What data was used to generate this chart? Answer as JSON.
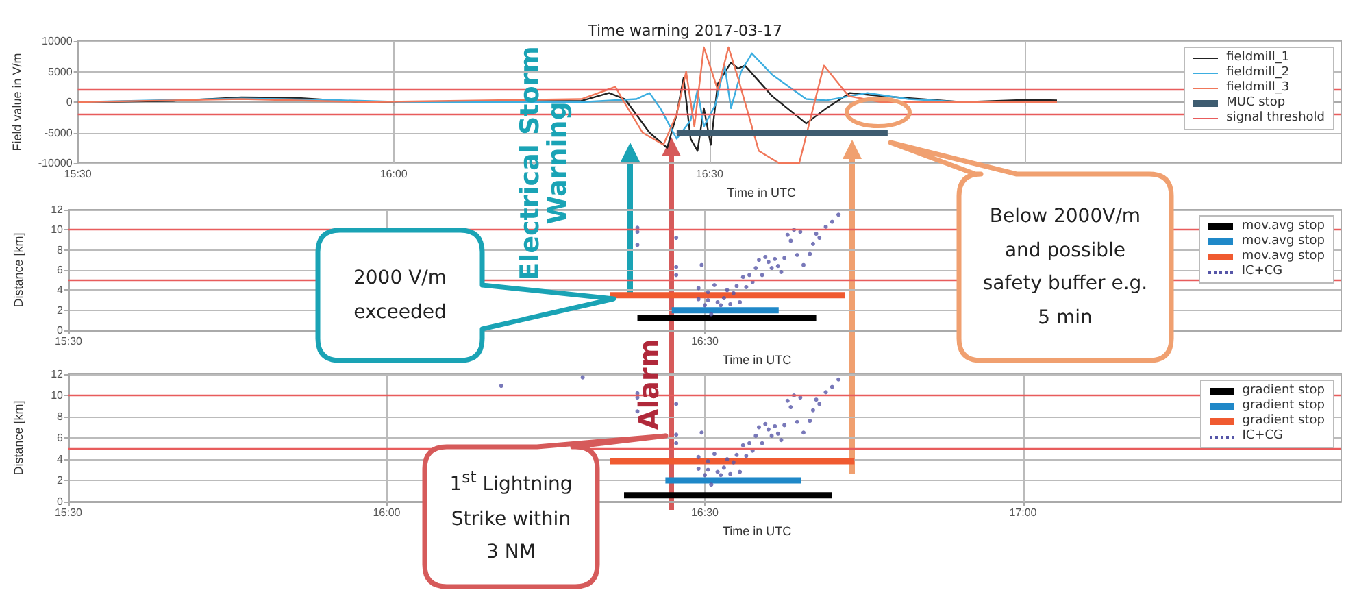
{
  "chart_data": [
    {
      "type": "line",
      "title": "Time warning 2017-03-17",
      "xlabel": "Time in UTC",
      "ylabel": "Field value in V/m",
      "xlim": [
        15.5,
        17.5
      ],
      "xticks": [
        {
          "value": 15.5,
          "label": "15:30"
        },
        {
          "value": 16,
          "label": "16:00"
        },
        {
          "value": 16.5,
          "label": "16:30"
        },
        {
          "value": 17,
          "label": null
        }
      ],
      "ylim": [
        -10000,
        10000
      ],
      "yticks": [
        -10000,
        -5000,
        0,
        5000,
        10000
      ],
      "grid": true,
      "legend": "top right",
      "series": [
        {
          "name": "fieldmill_1",
          "color": "#222222",
          "x": [
            15.5,
            15.651,
            15.759,
            15.845,
            15.953,
            16.297,
            16.341,
            16.366,
            16.405,
            16.433,
            16.448,
            16.459,
            16.47,
            16.481,
            16.491,
            16.502,
            16.513,
            16.534,
            16.545,
            16.556,
            16.599,
            16.653,
            16.685,
            16.722,
            16.772,
            16.901,
            17.009,
            17.05
          ],
          "values": [
            0,
            200,
            800,
            700,
            0,
            200,
            1500,
            500,
            -5000,
            -7500,
            -2000,
            4000,
            -6000,
            -8000,
            -1000,
            -7000,
            3000,
            6500,
            5500,
            6000,
            1000,
            -3500,
            -1000,
            1500,
            1000,
            0,
            400,
            300
          ]
        },
        {
          "name": "fieldmill_2",
          "color": "#3daee0",
          "x": [
            15.5,
            15.759,
            15.888,
            16.017,
            16.297,
            16.384,
            16.405,
            16.422,
            16.448,
            16.47,
            16.481,
            16.491,
            16.509,
            16.524,
            16.534,
            16.55,
            16.567,
            16.599,
            16.653,
            16.685,
            16.75,
            16.815,
            16.901,
            17.05
          ],
          "values": [
            0,
            600,
            400,
            0,
            0,
            500,
            1500,
            -1000,
            -6000,
            -3000,
            2000,
            -4000,
            -500,
            6000,
            -1000,
            5000,
            8000,
            4500,
            500,
            300,
            1500,
            500,
            0,
            0
          ]
        },
        {
          "name": "fieldmill_3",
          "color": "#f0775a",
          "x": [
            15.5,
            15.759,
            15.953,
            16.297,
            16.351,
            16.362,
            16.394,
            16.427,
            16.448,
            16.463,
            16.476,
            16.491,
            16.513,
            16.53,
            16.545,
            16.578,
            16.61,
            16.642,
            16.681,
            16.72,
            16.772,
            17.05
          ],
          "values": [
            0,
            500,
            0,
            500,
            2500,
            500,
            -5000,
            -7000,
            -2000,
            5000,
            -4000,
            9000,
            2000,
            9000,
            4000,
            -8000,
            -10000,
            -10000,
            6000,
            1000,
            0,
            0
          ]
        },
        {
          "name": "MUC stop",
          "color": "#3e5c70",
          "x": [
            16.448,
            16.782
          ],
          "values": [
            -5000,
            -5000
          ]
        }
      ],
      "ref_lines": [
        {
          "axis": "y",
          "value": 2000,
          "label": "signal threshold",
          "color": "#e85c5c"
        },
        {
          "axis": "y",
          "value": -2000,
          "color": "#e85c5c"
        }
      ]
    },
    {
      "type": "line",
      "xlabel": "Time in UTC",
      "ylabel": "Distance [km]",
      "xlim": [
        15.5,
        17.5
      ],
      "xticks": [
        {
          "value": 15.5,
          "label": "15:30"
        },
        {
          "value": 16,
          "label": null
        },
        {
          "value": 16.5,
          "label": "16:30"
        },
        {
          "value": 17,
          "label": null
        }
      ],
      "ylim": [
        0,
        12
      ],
      "yticks": [
        0,
        2,
        4,
        6,
        8,
        10,
        12
      ],
      "grid": true,
      "legend": "top right",
      "series": [
        {
          "name": "mov.avg stop",
          "color": "#000000",
          "x": [
            16.394,
            16.675
          ],
          "values": [
            1.2,
            1.2
          ]
        },
        {
          "name": "mov.avg stop",
          "color": "#1f88c8",
          "x": [
            16.448,
            16.616
          ],
          "values": [
            2,
            2
          ]
        },
        {
          "name": "mov.avg stop",
          "color": "#f05a30",
          "x": [
            16.351,
            16.72
          ],
          "values": [
            3.5,
            3.5
          ]
        },
        {
          "name": "IC+CG",
          "type": "scatter",
          "marker": "circle",
          "color": "#5656a8",
          "x": [
            16.394,
            16.394,
            16.394,
            16.455,
            16.455,
            16.455,
            16.49,
            16.49,
            16.495,
            16.5,
            16.505,
            16.505,
            16.51,
            16.515,
            16.52,
            16.525,
            16.53,
            16.535,
            16.54,
            16.545,
            16.55,
            16.555,
            16.56,
            16.565,
            16.57,
            16.575,
            16.58,
            16.585,
            16.59,
            16.595,
            16.6,
            16.605,
            16.61,
            16.615,
            16.62,
            16.625,
            16.63,
            16.635,
            16.64,
            16.645,
            16.65,
            16.655,
            16.665,
            16.67,
            16.675,
            16.68,
            16.69,
            16.7,
            16.71
          ],
          "values": [
            10.2,
            9.8,
            8.5,
            9.2,
            6.3,
            5.5,
            4.2,
            3.1,
            6.5,
            2.5,
            3.8,
            3,
            1.6,
            4.5,
            2.8,
            2.5,
            3.2,
            4,
            2.6,
            3.7,
            4.4,
            2.8,
            5.3,
            4.3,
            5.5,
            4.8,
            6.2,
            7,
            5.5,
            7.3,
            6.8,
            6.2,
            7.1,
            6.4,
            5.8,
            7.2,
            9.5,
            8.9,
            10,
            7.5,
            9.8,
            6.5,
            7.6,
            8.6,
            9.6,
            9.2,
            10.3,
            10.8,
            11.5
          ]
        }
      ],
      "ref_lines": [
        {
          "axis": "y",
          "value": 10,
          "color": "#e85c5c"
        },
        {
          "axis": "y",
          "value": 5,
          "color": "#e85c5c"
        }
      ],
      "annotations": [
        "Electrical Storm Warning",
        "2000 V/m exceeded",
        "Below 2000V/m and possible safety buffer e.g. 5 min"
      ]
    },
    {
      "type": "line",
      "xlabel": "Time in UTC",
      "ylabel": "Distance [km]",
      "xlim": [
        15.5,
        17.5
      ],
      "xticks": [
        {
          "value": 15.5,
          "label": "15:30"
        },
        {
          "value": 16,
          "label": "16:00"
        },
        {
          "value": 16.5,
          "label": "16:30"
        },
        {
          "value": 17,
          "label": "17:00"
        }
      ],
      "ylim": [
        0,
        12
      ],
      "yticks": [
        0,
        2,
        4,
        6,
        8,
        10,
        12
      ],
      "grid": true,
      "legend": "top right",
      "series": [
        {
          "name": "gradient stop",
          "color": "#000000",
          "x": [
            16.373,
            16.7
          ],
          "values": [
            0.6,
            0.6
          ]
        },
        {
          "name": "gradient stop",
          "color": "#1f88c8",
          "x": [
            16.438,
            16.651
          ],
          "values": [
            2,
            2
          ]
        },
        {
          "name": "gradient stop",
          "color": "#f05a30",
          "x": [
            16.351,
            16.735
          ],
          "values": [
            3.8,
            3.8
          ]
        },
        {
          "name": "IC+CG",
          "type": "scatter",
          "marker": "circle",
          "color": "#5656a8",
          "x": [
            16.18,
            16.308,
            16.394,
            16.394,
            16.394,
            16.455,
            16.455,
            16.455,
            16.49,
            16.49,
            16.495,
            16.5,
            16.505,
            16.505,
            16.51,
            16.515,
            16.52,
            16.525,
            16.53,
            16.535,
            16.54,
            16.545,
            16.55,
            16.555,
            16.56,
            16.565,
            16.57,
            16.575,
            16.58,
            16.585,
            16.59,
            16.595,
            16.6,
            16.605,
            16.61,
            16.615,
            16.62,
            16.625,
            16.63,
            16.635,
            16.64,
            16.645,
            16.65,
            16.655,
            16.665,
            16.67,
            16.675,
            16.68,
            16.69,
            16.7,
            16.71
          ],
          "values": [
            10.9,
            11.7,
            10.2,
            9.8,
            8.5,
            9.2,
            6.3,
            5.5,
            4.2,
            3.1,
            6.5,
            2.5,
            3.8,
            3,
            1.6,
            4.5,
            2.8,
            2.5,
            3.2,
            4,
            2.6,
            3.7,
            4.4,
            2.8,
            5.3,
            4.3,
            5.5,
            4.8,
            6.2,
            7,
            5.5,
            7.3,
            6.8,
            6.2,
            7.1,
            6.4,
            5.8,
            7.2,
            9.5,
            8.9,
            10,
            7.5,
            9.8,
            6.5,
            7.6,
            8.6,
            9.6,
            9.2,
            10.3,
            10.8,
            11.5
          ]
        }
      ],
      "ref_lines": [
        {
          "axis": "y",
          "value": 10,
          "color": "#e85c5c"
        },
        {
          "axis": "y",
          "value": 5,
          "color": "#e85c5c"
        }
      ],
      "annotations": [
        "Alarm",
        "1$^{st}$ Lightning Strike within 3 NM"
      ]
    }
  ]
}
